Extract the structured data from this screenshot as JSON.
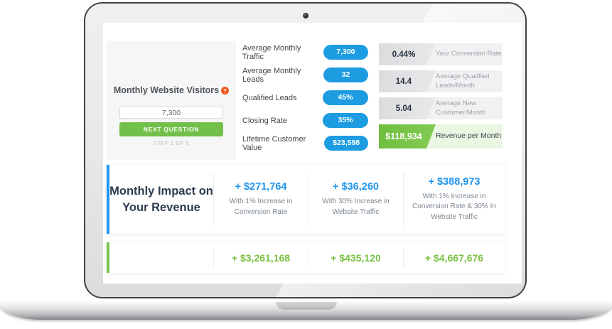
{
  "left_panel": {
    "title": "Monthly Website Visitors",
    "help_glyph": "?",
    "input_value": "7,300",
    "button_label": "NEXT QUESTION",
    "step_text": "STEP 1 OF 5"
  },
  "metrics": [
    {
      "label": "Average Monthly Traffic",
      "value": "7,300"
    },
    {
      "label": "Average Monthly Leads",
      "value": "32"
    },
    {
      "label": "Qualified Leads",
      "value": "45%"
    },
    {
      "label": "Closing Rate",
      "value": "35%"
    },
    {
      "label": "Lifetime Customer Value",
      "value": "$23,598"
    }
  ],
  "results": [
    {
      "value": "0.44%",
      "label": "Your Conversion Rate"
    },
    {
      "value": "14.4",
      "label": "Average Qualified Leads/Month"
    },
    {
      "value": "5.04",
      "label": "Average New Customer/Month"
    },
    {
      "value": "$118,934",
      "label": "Revenue per Month"
    }
  ],
  "impact": {
    "title": "Monthly Impact on Your Revenue",
    "columns": [
      {
        "value": "+ $271,764",
        "description": "With 1% Increase in Conversion Rate"
      },
      {
        "value": "+ $36,260",
        "description": "With 30% Increase in Website Traffic"
      },
      {
        "value": "+ $388,973",
        "description": "With 1% Increase in Conversion Rate & 30% In Website Traffic"
      }
    ]
  },
  "totals": [
    "+ $3,261,168",
    "+ $435,120",
    "+ $4,667,676"
  ],
  "colors": {
    "pill_blue": "#1d9ce1",
    "accent_blue": "#2196f3",
    "value_blue": "#2095ec",
    "button_green": "#72c04a",
    "accent_green": "#7cc14e",
    "value_green": "#7ac142",
    "revenue_box_green": "#76c243",
    "revenue_bg_green": "#eaf5e2",
    "panel_gray": "#f6f6f7",
    "result_row_gray": "#f1f1f2",
    "help_orange": "#f05b22",
    "navy_text": "#2e3c4e"
  }
}
